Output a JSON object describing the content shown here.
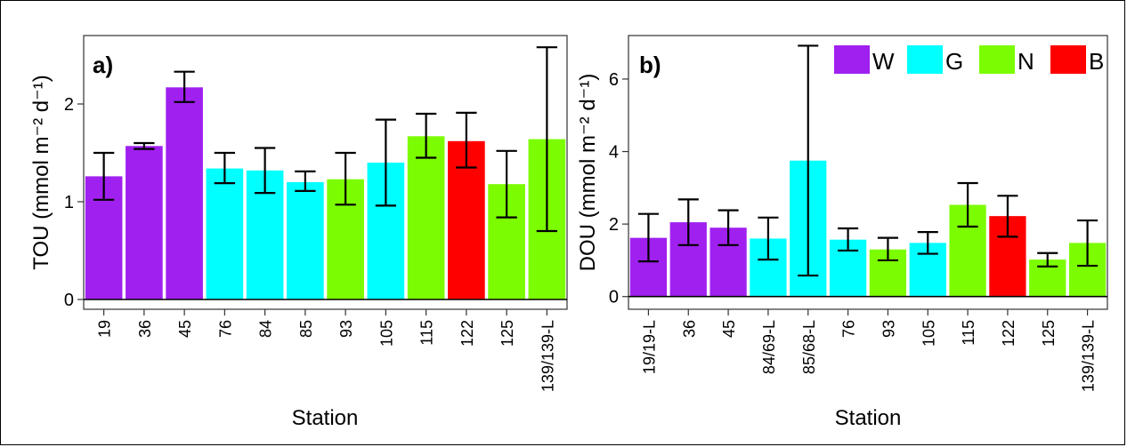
{
  "chart_data": [
    {
      "type": "bar",
      "panel_label": "a)",
      "xlabel": "Station",
      "ylabel": "TOU (mmol m⁻² d⁻¹)",
      "ylim": [
        -0.1,
        2.7
      ],
      "yticks": [
        0,
        1,
        2
      ],
      "grid": false,
      "categories": [
        "19",
        "36",
        "45",
        "76",
        "84",
        "85",
        "93",
        "105",
        "115",
        "122",
        "125",
        "139/139-L"
      ],
      "values": [
        1.26,
        1.57,
        2.17,
        1.34,
        1.32,
        1.2,
        1.23,
        1.4,
        1.67,
        1.62,
        1.18,
        1.64
      ],
      "error_low": [
        1.02,
        1.54,
        2.02,
        1.19,
        1.09,
        1.11,
        0.97,
        0.96,
        1.45,
        1.35,
        0.84,
        0.7
      ],
      "error_high": [
        1.5,
        1.6,
        2.33,
        1.5,
        1.55,
        1.31,
        1.5,
        1.84,
        1.9,
        1.91,
        1.52,
        2.58
      ],
      "groups": [
        "W",
        "W",
        "W",
        "G",
        "G",
        "G",
        "N",
        "G",
        "N",
        "B",
        "N",
        "N"
      ]
    },
    {
      "type": "bar",
      "panel_label": "b)",
      "xlabel": "Station",
      "ylabel": "DOU (mmol m⁻² d⁻¹)",
      "ylim": [
        -0.35,
        7.2
      ],
      "yticks": [
        0,
        2,
        4,
        6
      ],
      "grid": false,
      "categories": [
        "19/19-L",
        "36",
        "45",
        "84/69-L",
        "85/68-L",
        "76",
        "93",
        "105",
        "115",
        "122",
        "125",
        "139/139-L"
      ],
      "values": [
        1.62,
        2.05,
        1.9,
        1.6,
        3.75,
        1.57,
        1.3,
        1.48,
        2.53,
        2.22,
        1.02,
        1.48
      ],
      "error_low": [
        0.97,
        1.42,
        1.42,
        1.02,
        0.58,
        1.27,
        1.0,
        1.18,
        1.93,
        1.65,
        0.83,
        0.85
      ],
      "error_high": [
        2.28,
        2.68,
        2.38,
        2.18,
        6.92,
        1.88,
        1.62,
        1.78,
        3.13,
        2.78,
        1.2,
        2.1
      ],
      "groups": [
        "W",
        "W",
        "W",
        "G",
        "G",
        "G",
        "N",
        "G",
        "N",
        "B",
        "N",
        "N"
      ]
    }
  ],
  "legend": {
    "placement": "top-right",
    "items": [
      {
        "label": "W",
        "color": "#A020F0"
      },
      {
        "label": "G",
        "color": "#00FFFF"
      },
      {
        "label": "N",
        "color": "#7CFC00"
      },
      {
        "label": "B",
        "color": "#FF0000"
      }
    ]
  }
}
